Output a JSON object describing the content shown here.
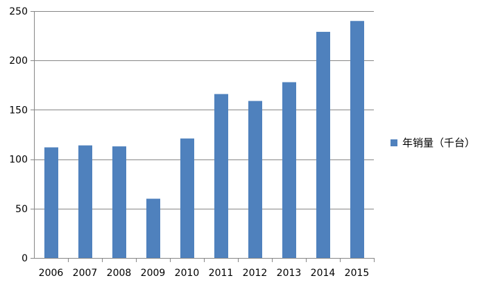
{
  "chart_data": {
    "type": "bar",
    "categories": [
      "2006",
      "2007",
      "2008",
      "2009",
      "2010",
      "2011",
      "2012",
      "2013",
      "2014",
      "2015"
    ],
    "series": [
      {
        "name": "年销量（千台）",
        "values": [
          112,
          114,
          113,
          60,
          121,
          166,
          159,
          178,
          229,
          240
        ],
        "color": "#4f81bd"
      }
    ],
    "ylim": [
      0,
      250
    ],
    "yticks": [
      "0",
      "50",
      "100",
      "150",
      "200",
      "250"
    ],
    "grid": true,
    "legend_position": "right"
  },
  "colors": {
    "bar": "#4f81bd",
    "grid": "#868686",
    "axis": "#868686",
    "text": "#000000"
  }
}
